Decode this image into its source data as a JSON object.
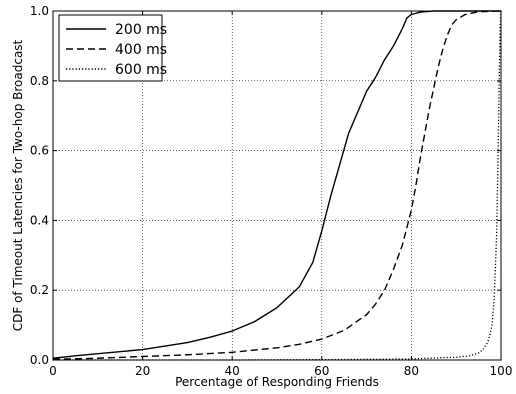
{
  "chart_data": {
    "type": "line",
    "xlabel": "Percentage of Responding Friends",
    "ylabel": "CDF of Timeout Latencies for Two-hop Broadcast",
    "xlim": [
      0,
      100
    ],
    "ylim": [
      0,
      1.0
    ],
    "x_ticks": [
      0,
      20,
      40,
      60,
      80,
      100
    ],
    "x_tick_labels": [
      "0",
      "20",
      "40",
      "60",
      "80",
      "100"
    ],
    "y_ticks": [
      0,
      0.2,
      0.4,
      0.6,
      0.8,
      1.0
    ],
    "y_tick_labels": [
      "0.0",
      "0.2",
      "0.4",
      "0.6",
      "0.8",
      "1.0"
    ],
    "grid": true,
    "legend_position": "top-left",
    "series": [
      {
        "name": "200 ms",
        "style": "solid",
        "color": "#000000",
        "points": [
          [
            0,
            0.005
          ],
          [
            5,
            0.012
          ],
          [
            10,
            0.018
          ],
          [
            20,
            0.03
          ],
          [
            30,
            0.05
          ],
          [
            35,
            0.065
          ],
          [
            40,
            0.083
          ],
          [
            45,
            0.11
          ],
          [
            50,
            0.15
          ],
          [
            55,
            0.21
          ],
          [
            58,
            0.28
          ],
          [
            60,
            0.37
          ],
          [
            62,
            0.47
          ],
          [
            64,
            0.56
          ],
          [
            66,
            0.65
          ],
          [
            68,
            0.71
          ],
          [
            70,
            0.77
          ],
          [
            72,
            0.81
          ],
          [
            74,
            0.86
          ],
          [
            76,
            0.9
          ],
          [
            78,
            0.95
          ],
          [
            79,
            0.98
          ],
          [
            80,
            0.99
          ],
          [
            82,
            0.997
          ],
          [
            85,
            1.0
          ],
          [
            100,
            1.0
          ]
        ]
      },
      {
        "name": "400 ms",
        "style": "dashed",
        "color": "#000000",
        "points": [
          [
            0,
            0.002
          ],
          [
            10,
            0.005
          ],
          [
            20,
            0.01
          ],
          [
            30,
            0.015
          ],
          [
            40,
            0.022
          ],
          [
            50,
            0.035
          ],
          [
            55,
            0.045
          ],
          [
            60,
            0.06
          ],
          [
            65,
            0.085
          ],
          [
            70,
            0.13
          ],
          [
            72,
            0.16
          ],
          [
            74,
            0.2
          ],
          [
            76,
            0.26
          ],
          [
            78,
            0.33
          ],
          [
            79,
            0.38
          ],
          [
            80,
            0.43
          ],
          [
            81,
            0.5
          ],
          [
            82,
            0.58
          ],
          [
            83,
            0.65
          ],
          [
            84,
            0.72
          ],
          [
            85,
            0.78
          ],
          [
            86,
            0.84
          ],
          [
            87,
            0.89
          ],
          [
            88,
            0.93
          ],
          [
            89,
            0.96
          ],
          [
            90,
            0.975
          ],
          [
            92,
            0.99
          ],
          [
            95,
            0.998
          ],
          [
            100,
            1.0
          ]
        ]
      },
      {
        "name": "600 ms",
        "style": "dotted",
        "color": "#000000",
        "points": [
          [
            0,
            0.0
          ],
          [
            40,
            0.0
          ],
          [
            60,
            0.001
          ],
          [
            80,
            0.003
          ],
          [
            90,
            0.008
          ],
          [
            93,
            0.012
          ],
          [
            95,
            0.02
          ],
          [
            96,
            0.03
          ],
          [
            97,
            0.05
          ],
          [
            97.5,
            0.07
          ],
          [
            98,
            0.1
          ],
          [
            98.5,
            0.18
          ],
          [
            99,
            0.35
          ],
          [
            99.3,
            0.55
          ],
          [
            99.6,
            0.8
          ],
          [
            99.8,
            0.95
          ],
          [
            100,
            1.0
          ]
        ]
      }
    ]
  }
}
